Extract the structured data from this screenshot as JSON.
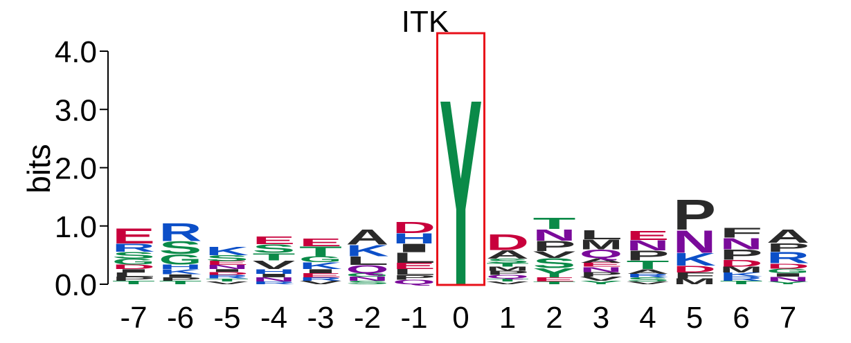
{
  "chart_data": {
    "type": "sequence-logo",
    "title": "ITK",
    "ylabel": "bits",
    "ylim": [
      0,
      4.0
    ],
    "yticks": [
      {
        "value": 0,
        "label": "0.0"
      },
      {
        "value": 1,
        "label": "1.0"
      },
      {
        "value": 2,
        "label": "2.0"
      },
      {
        "value": 3,
        "label": "3.0"
      },
      {
        "value": 4,
        "label": "4.0"
      }
    ],
    "highlight_position": "0",
    "highlight_color": "#e8101a",
    "colors": {
      "acidic": "#c8003c",
      "basic": "#0c4fc8",
      "polar": "#0a8a48",
      "amide": "#7a0a9a",
      "hydrophobic": "#2a2a2a"
    },
    "positions": [
      {
        "label": "-7",
        "letters": [
          {
            "aa": "T",
            "h": 0.06
          },
          {
            "aa": "P",
            "h": 0.07
          },
          {
            "aa": "L",
            "h": 0.07
          },
          {
            "aa": "I",
            "h": 0.06
          },
          {
            "aa": "D",
            "h": 0.08
          },
          {
            "aa": "G",
            "h": 0.1
          },
          {
            "aa": "S",
            "h": 0.12
          },
          {
            "aa": "R",
            "h": 0.14
          },
          {
            "aa": "E",
            "h": 0.27
          }
        ]
      },
      {
        "label": "-6",
        "letters": [
          {
            "aa": "T",
            "h": 0.06
          },
          {
            "aa": "P",
            "h": 0.06
          },
          {
            "aa": "I",
            "h": 0.05
          },
          {
            "aa": "K",
            "h": 0.09
          },
          {
            "aa": "H",
            "h": 0.08
          },
          {
            "aa": "G",
            "h": 0.18
          },
          {
            "aa": "S",
            "h": 0.22
          },
          {
            "aa": "R",
            "h": 0.32
          }
        ]
      },
      {
        "label": "-5",
        "letters": [
          {
            "aa": "V",
            "h": 0.05
          },
          {
            "aa": "T",
            "h": 0.05
          },
          {
            "aa": "R",
            "h": 0.06
          },
          {
            "aa": "D",
            "h": 0.05
          },
          {
            "aa": "I",
            "h": 0.05
          },
          {
            "aa": "N",
            "h": 0.07
          },
          {
            "aa": "E",
            "h": 0.07
          },
          {
            "aa": "S",
            "h": 0.1
          },
          {
            "aa": "K",
            "h": 0.15
          }
        ]
      },
      {
        "label": "-4",
        "letters": [
          {
            "aa": "R",
            "h": 0.05
          },
          {
            "aa": "N",
            "h": 0.07
          },
          {
            "aa": "I",
            "h": 0.06
          },
          {
            "aa": "H",
            "h": 0.08
          },
          {
            "aa": "V",
            "h": 0.15
          },
          {
            "aa": "T",
            "h": 0.13
          },
          {
            "aa": "S",
            "h": 0.15
          },
          {
            "aa": "E",
            "h": 0.13
          }
        ]
      },
      {
        "label": "-3",
        "letters": [
          {
            "aa": "V",
            "h": 0.06
          },
          {
            "aa": "R",
            "h": 0.06
          },
          {
            "aa": "E",
            "h": 0.07
          },
          {
            "aa": "I",
            "h": 0.07
          },
          {
            "aa": "K",
            "h": 0.12
          },
          {
            "aa": "G",
            "h": 0.1
          },
          {
            "aa": "T",
            "h": 0.17
          },
          {
            "aa": "E",
            "h": 0.13
          }
        ]
      },
      {
        "label": "-2",
        "letters": [
          {
            "aa": "S",
            "h": 0.06
          },
          {
            "aa": "N",
            "h": 0.07
          },
          {
            "aa": "G",
            "h": 0.06
          },
          {
            "aa": "Q",
            "h": 0.14
          },
          {
            "aa": "L",
            "h": 0.15
          },
          {
            "aa": "K",
            "h": 0.2
          },
          {
            "aa": "A",
            "h": 0.27
          }
        ]
      },
      {
        "label": "-1",
        "letters": [
          {
            "aa": "Q",
            "h": 0.08
          },
          {
            "aa": "P",
            "h": 0.08
          },
          {
            "aa": "L",
            "h": 0.1
          },
          {
            "aa": "E",
            "h": 0.11
          },
          {
            "aa": "L",
            "h": 0.18
          },
          {
            "aa": "I",
            "h": 0.15
          },
          {
            "aa": "H",
            "h": 0.18
          },
          {
            "aa": "D",
            "h": 0.2
          }
        ]
      },
      {
        "label": "0",
        "letters": [
          {
            "aa": "Y",
            "h": 3.28
          }
        ]
      },
      {
        "label": "1",
        "letters": [
          {
            "aa": "V",
            "h": 0.05
          },
          {
            "aa": "T",
            "h": 0.05
          },
          {
            "aa": "Q",
            "h": 0.06
          },
          {
            "aa": "P",
            "h": 0.07
          },
          {
            "aa": "M",
            "h": 0.07
          },
          {
            "aa": "T",
            "h": 0.06
          },
          {
            "aa": "S",
            "h": 0.08
          },
          {
            "aa": "A",
            "h": 0.15
          },
          {
            "aa": "D",
            "h": 0.28
          }
        ]
      },
      {
        "label": "2",
        "letters": [
          {
            "aa": "T",
            "h": 0.05
          },
          {
            "aa": "E",
            "h": 0.07
          },
          {
            "aa": "Y",
            "h": 0.16
          },
          {
            "aa": "S",
            "h": 0.17
          },
          {
            "aa": "V",
            "h": 0.12
          },
          {
            "aa": "P",
            "h": 0.18
          },
          {
            "aa": "N",
            "h": 0.2
          },
          {
            "aa": "T",
            "h": 0.2
          }
        ]
      },
      {
        "label": "3",
        "letters": [
          {
            "aa": "Y",
            "h": 0.06
          },
          {
            "aa": "V",
            "h": 0.07
          },
          {
            "aa": "P",
            "h": 0.08
          },
          {
            "aa": "N",
            "h": 0.09
          },
          {
            "aa": "E",
            "h": 0.07
          },
          {
            "aa": "A",
            "h": 0.08
          },
          {
            "aa": "Q",
            "h": 0.15
          },
          {
            "aa": "M",
            "h": 0.17
          },
          {
            "aa": "L",
            "h": 0.16
          }
        ]
      },
      {
        "label": "4",
        "letters": [
          {
            "aa": "V",
            "h": 0.05
          },
          {
            "aa": "S",
            "h": 0.07
          },
          {
            "aa": "R",
            "h": 0.06
          },
          {
            "aa": "A",
            "h": 0.08
          },
          {
            "aa": "T",
            "h": 0.15
          },
          {
            "aa": "P",
            "h": 0.17
          },
          {
            "aa": "N",
            "h": 0.18
          },
          {
            "aa": "E",
            "h": 0.16
          }
        ]
      },
      {
        "label": "5",
        "letters": [
          {
            "aa": "M",
            "h": 0.1
          },
          {
            "aa": "F",
            "h": 0.1
          },
          {
            "aa": "D",
            "h": 0.12
          },
          {
            "aa": "K",
            "h": 0.22
          },
          {
            "aa": "N",
            "h": 0.4
          },
          {
            "aa": "P",
            "h": 0.53
          }
        ]
      },
      {
        "label": "6",
        "letters": [
          {
            "aa": "T",
            "h": 0.06
          },
          {
            "aa": "R",
            "h": 0.07
          },
          {
            "aa": "K",
            "h": 0.07
          },
          {
            "aa": "M",
            "h": 0.1
          },
          {
            "aa": "D",
            "h": 0.12
          },
          {
            "aa": "P",
            "h": 0.18
          },
          {
            "aa": "N",
            "h": 0.2
          },
          {
            "aa": "F",
            "h": 0.17
          }
        ]
      },
      {
        "label": "7",
        "letters": [
          {
            "aa": "Y",
            "h": 0.05
          },
          {
            "aa": "N",
            "h": 0.08
          },
          {
            "aa": "I",
            "h": 0.06
          },
          {
            "aa": "G",
            "h": 0.08
          },
          {
            "aa": "D",
            "h": 0.09
          },
          {
            "aa": "R",
            "h": 0.2
          },
          {
            "aa": "P",
            "h": 0.15
          },
          {
            "aa": "A",
            "h": 0.24
          }
        ]
      }
    ]
  }
}
